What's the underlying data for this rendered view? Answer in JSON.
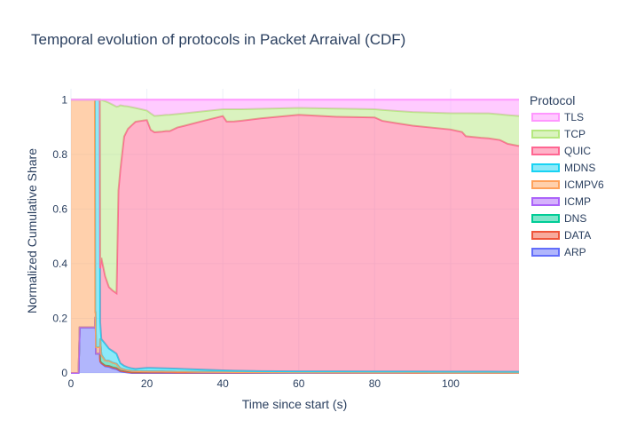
{
  "chart_data": {
    "type": "area",
    "title": "Temporal evolution of protocols in Packet Arraival (CDF)",
    "xlabel": "Time since start (s)",
    "ylabel": "Normalized Cumulative Share",
    "xlim": [
      0,
      118
    ],
    "ylim": [
      0,
      1.04
    ],
    "x_ticks": [
      0,
      20,
      40,
      60,
      80,
      100
    ],
    "y_ticks": [
      0,
      0.2,
      0.4,
      0.6,
      0.8,
      1
    ],
    "grid": true,
    "stacking": "stacked, normalized to 1",
    "legend": {
      "title": "Protocol",
      "placement": "right"
    },
    "series": [
      {
        "name": "ARP",
        "color": "#636efa",
        "points": [
          [
            0,
            0
          ],
          [
            2,
            0
          ],
          [
            2.3,
            0.2
          ],
          [
            6.5,
            0.2
          ],
          [
            6.6,
            0.06
          ],
          [
            7.6,
            0.06
          ],
          [
            7.7,
            0.04
          ],
          [
            9,
            0.02
          ],
          [
            11,
            0.01
          ],
          [
            13,
            0.005
          ],
          [
            16,
            0
          ],
          [
            118,
            0
          ]
        ]
      },
      {
        "name": "DATA",
        "color": "#ef553b",
        "points": [
          [
            0,
            0
          ],
          [
            7.6,
            0
          ],
          [
            7.7,
            0.002
          ],
          [
            20,
            0.002
          ],
          [
            118,
            0
          ]
        ]
      },
      {
        "name": "DNS",
        "color": "#00cc96",
        "points": [
          [
            0,
            0
          ],
          [
            7.6,
            0
          ],
          [
            7.7,
            0.08
          ],
          [
            8,
            0.03
          ],
          [
            9,
            0.015
          ],
          [
            11,
            0.01
          ],
          [
            14,
            0.006
          ],
          [
            20,
            0.004
          ],
          [
            40,
            0.002
          ],
          [
            60,
            0.001
          ],
          [
            118,
            0.001
          ]
        ]
      },
      {
        "name": "ICMP",
        "color": "#ab63fa",
        "points": [
          [
            0,
            0
          ],
          [
            118,
            0
          ]
        ]
      },
      {
        "name": "ICMPV6",
        "color": "#ffa15a",
        "points": [
          [
            0,
            1
          ],
          [
            6.3,
            1
          ],
          [
            6.4,
            0.02
          ],
          [
            7.6,
            0.02
          ],
          [
            7.7,
            0
          ],
          [
            118,
            0
          ]
        ]
      },
      {
        "name": "MDNS",
        "color": "#19d3f3",
        "points": [
          [
            0,
            0
          ],
          [
            6.3,
            0
          ],
          [
            6.4,
            0.77
          ],
          [
            7.6,
            0.77
          ],
          [
            7.7,
            0.06
          ],
          [
            9,
            0.05
          ],
          [
            10,
            0.03
          ],
          [
            12,
            0.02
          ],
          [
            14,
            0.012
          ],
          [
            17,
            0.008
          ],
          [
            20,
            0.013
          ],
          [
            25,
            0.012
          ],
          [
            30,
            0.01
          ],
          [
            40,
            0.006
          ],
          [
            50,
            0.004
          ],
          [
            60,
            0.004
          ],
          [
            80,
            0.004
          ],
          [
            100,
            0.004
          ],
          [
            118,
            0.004
          ]
        ]
      },
      {
        "name": "QUIC",
        "color": "#ff6692",
        "points": [
          [
            0,
            0
          ],
          [
            7.6,
            0
          ],
          [
            7.7,
            0.19
          ],
          [
            8,
            0.3
          ],
          [
            9,
            0.2
          ],
          [
            10,
            0.15
          ],
          [
            11,
            0.13
          ],
          [
            12,
            0.12
          ],
          [
            12.5,
            0.4
          ],
          [
            13,
            0.6
          ],
          [
            14,
            0.75
          ],
          [
            15,
            0.85
          ],
          [
            17,
            0.9
          ],
          [
            19,
            0.915
          ],
          [
            20,
            0.915
          ],
          [
            21,
            0.87
          ],
          [
            24,
            0.87
          ],
          [
            25,
            0.88
          ],
          [
            26,
            0.87
          ],
          [
            28,
            0.89
          ],
          [
            35,
            0.92
          ],
          [
            40,
            0.935
          ],
          [
            41,
            0.915
          ],
          [
            43,
            0.92
          ],
          [
            50,
            0.93
          ],
          [
            60,
            0.94
          ],
          [
            70,
            0.935
          ],
          [
            80,
            0.935
          ],
          [
            82,
            0.915
          ],
          [
            86,
            0.905
          ],
          [
            90,
            0.9
          ],
          [
            100,
            0.895
          ],
          [
            103,
            0.89
          ],
          [
            104,
            0.87
          ],
          [
            108,
            0.86
          ],
          [
            113,
            0.855
          ],
          [
            115,
            0.835
          ],
          [
            118,
            0.83
          ]
        ]
      },
      {
        "name": "TCP",
        "color": "#b6e880",
        "points": [
          [
            0,
            0
          ],
          [
            7.6,
            0
          ],
          [
            7.7,
            0.6
          ],
          [
            9,
            0.52
          ],
          [
            10,
            0.45
          ],
          [
            11,
            0.4
          ],
          [
            12,
            0.37
          ],
          [
            12.5,
            0.2
          ],
          [
            13,
            0.2
          ],
          [
            14,
            0.1
          ],
          [
            15,
            0.08
          ],
          [
            17,
            0.05
          ],
          [
            19,
            0.04
          ],
          [
            20,
            0.035
          ],
          [
            21,
            0.06
          ],
          [
            24,
            0.06
          ],
          [
            26,
            0.06
          ],
          [
            28,
            0.05
          ],
          [
            35,
            0.035
          ],
          [
            40,
            0.025
          ],
          [
            41,
            0.045
          ],
          [
            43,
            0.045
          ],
          [
            50,
            0.035
          ],
          [
            60,
            0.025
          ],
          [
            70,
            0.03
          ],
          [
            80,
            0.03
          ],
          [
            82,
            0.04
          ],
          [
            86,
            0.045
          ],
          [
            90,
            0.05
          ],
          [
            100,
            0.06
          ],
          [
            103,
            0.07
          ],
          [
            104,
            0.085
          ],
          [
            108,
            0.09
          ],
          [
            113,
            0.095
          ],
          [
            115,
            0.105
          ],
          [
            118,
            0.11
          ]
        ]
      },
      {
        "name": "TLS",
        "color": "#ff97ff",
        "points": [
          [
            0,
            0
          ],
          [
            7.6,
            0
          ],
          [
            7.7,
            0
          ],
          [
            20,
            0.04
          ],
          [
            22,
            0.06
          ],
          [
            30,
            0.05
          ],
          [
            40,
            0.035
          ],
          [
            45,
            0.035
          ],
          [
            60,
            0.03
          ],
          [
            80,
            0.035
          ],
          [
            90,
            0.045
          ],
          [
            100,
            0.05
          ],
          [
            110,
            0.05
          ],
          [
            118,
            0.06
          ]
        ]
      }
    ]
  }
}
